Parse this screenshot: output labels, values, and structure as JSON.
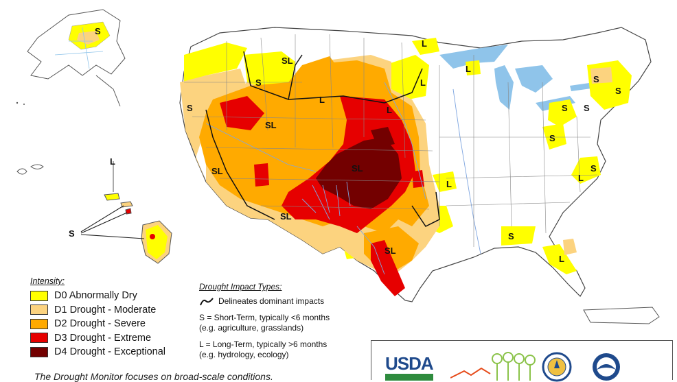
{
  "colors": {
    "D0": "#ffff00",
    "D1": "#fcd37f",
    "D2": "#ffaa00",
    "D3": "#e60000",
    "D4": "#730000",
    "water": "#8fc4ea",
    "boundary": "#444444"
  },
  "legend": {
    "title": "Intensity:",
    "items": [
      {
        "code": "D0",
        "label": "D0 Abnormally Dry"
      },
      {
        "code": "D1",
        "label": "D1 Drought - Moderate"
      },
      {
        "code": "D2",
        "label": "D2 Drought - Severe"
      },
      {
        "code": "D3",
        "label": "D3 Drought - Extreme"
      },
      {
        "code": "D4",
        "label": "D4 Drought - Exceptional"
      }
    ]
  },
  "impacts": {
    "title": "Drought Impact Types:",
    "delineates": "Delineates dominant impacts",
    "short_term": "S = Short-Term, typically <6 months",
    "short_term_eg": "(e.g. agriculture, grasslands)",
    "long_term": "L = Long-Term, typically >6 months",
    "long_term_eg": "(e.g. hydrology, ecology)"
  },
  "map_labels": [
    "S",
    "L",
    "SL",
    "L",
    "S",
    "SL",
    "S",
    "L",
    "SL",
    "L",
    "SL",
    "SL",
    "SL",
    "L",
    "L",
    "S",
    "S",
    "S",
    "S",
    "S",
    "S",
    "L",
    "L",
    "S",
    "L",
    "S"
  ],
  "logos": {
    "usda": "USDA",
    "items": [
      "usda-logo",
      "drought-center-logo",
      "commerce-seal",
      "noaa-logo"
    ]
  },
  "footnote": "The Drought Monitor focuses on broad-scale conditions."
}
